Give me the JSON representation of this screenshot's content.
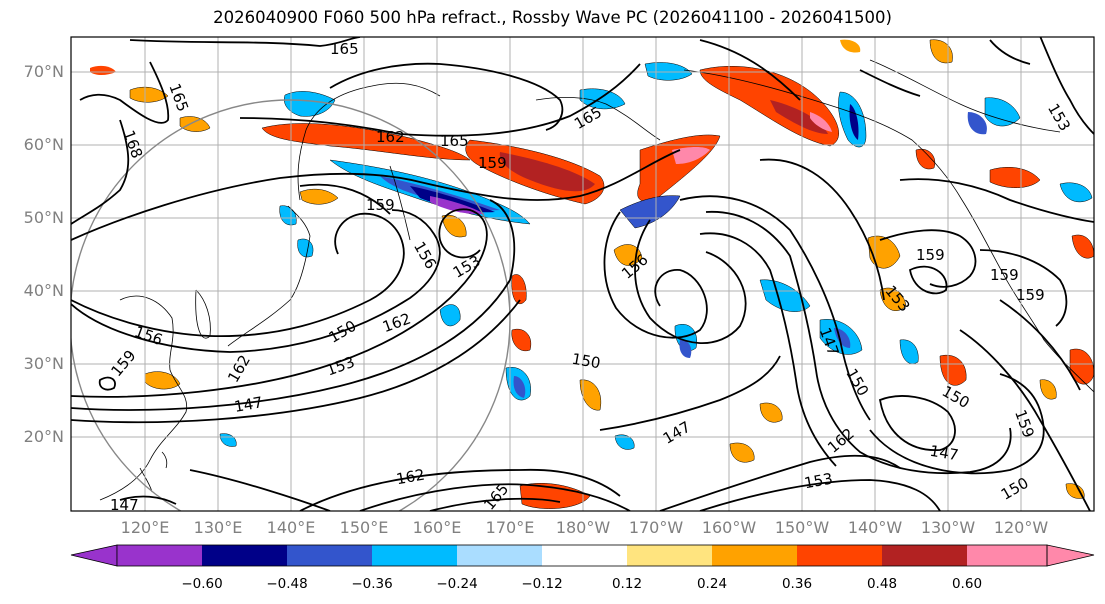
{
  "title": "2026040900 F060 500 hPa refract., Rossby Wave PC (2026041100 - 2026041500)",
  "lat_labels": [
    "70°N",
    "60°N",
    "50°N",
    "40°N",
    "30°N",
    "20°N"
  ],
  "lon_labels": [
    "120°E",
    "130°E",
    "140°E",
    "150°E",
    "160°E",
    "170°E",
    "180°W",
    "170°W",
    "160°W",
    "150°W",
    "140°W",
    "130°W",
    "120°W"
  ],
  "contour_labels": [
    "165",
    "165",
    "168",
    "162",
    "165",
    "165",
    "159",
    "159",
    "156",
    "153",
    "162",
    "150",
    "153",
    "156",
    "162",
    "159",
    "147",
    "147",
    "150",
    "150",
    "147",
    "162",
    "153",
    "162",
    "165",
    "156",
    "159",
    "159",
    "153",
    "150",
    "147",
    "159",
    "159",
    "150",
    "147",
    "153"
  ],
  "colorbar": {
    "colors": [
      "#9933cc",
      "#000088",
      "#3355cc",
      "#00bbff",
      "#aaddff",
      "#ffffff",
      "#ffe47f",
      "#ffa200",
      "#ff4400",
      "#b22222",
      "#ff88aa"
    ],
    "tick_labels": [
      "−0.60",
      "−0.48",
      "−0.36",
      "−0.24",
      "−0.12",
      "0.12",
      "0.24",
      "0.36",
      "0.48",
      "0.60"
    ]
  },
  "map_colors": {
    "contour": "#000000",
    "coastline": "#000000",
    "gridline": "#b0b0b0",
    "circle": "#888888"
  }
}
